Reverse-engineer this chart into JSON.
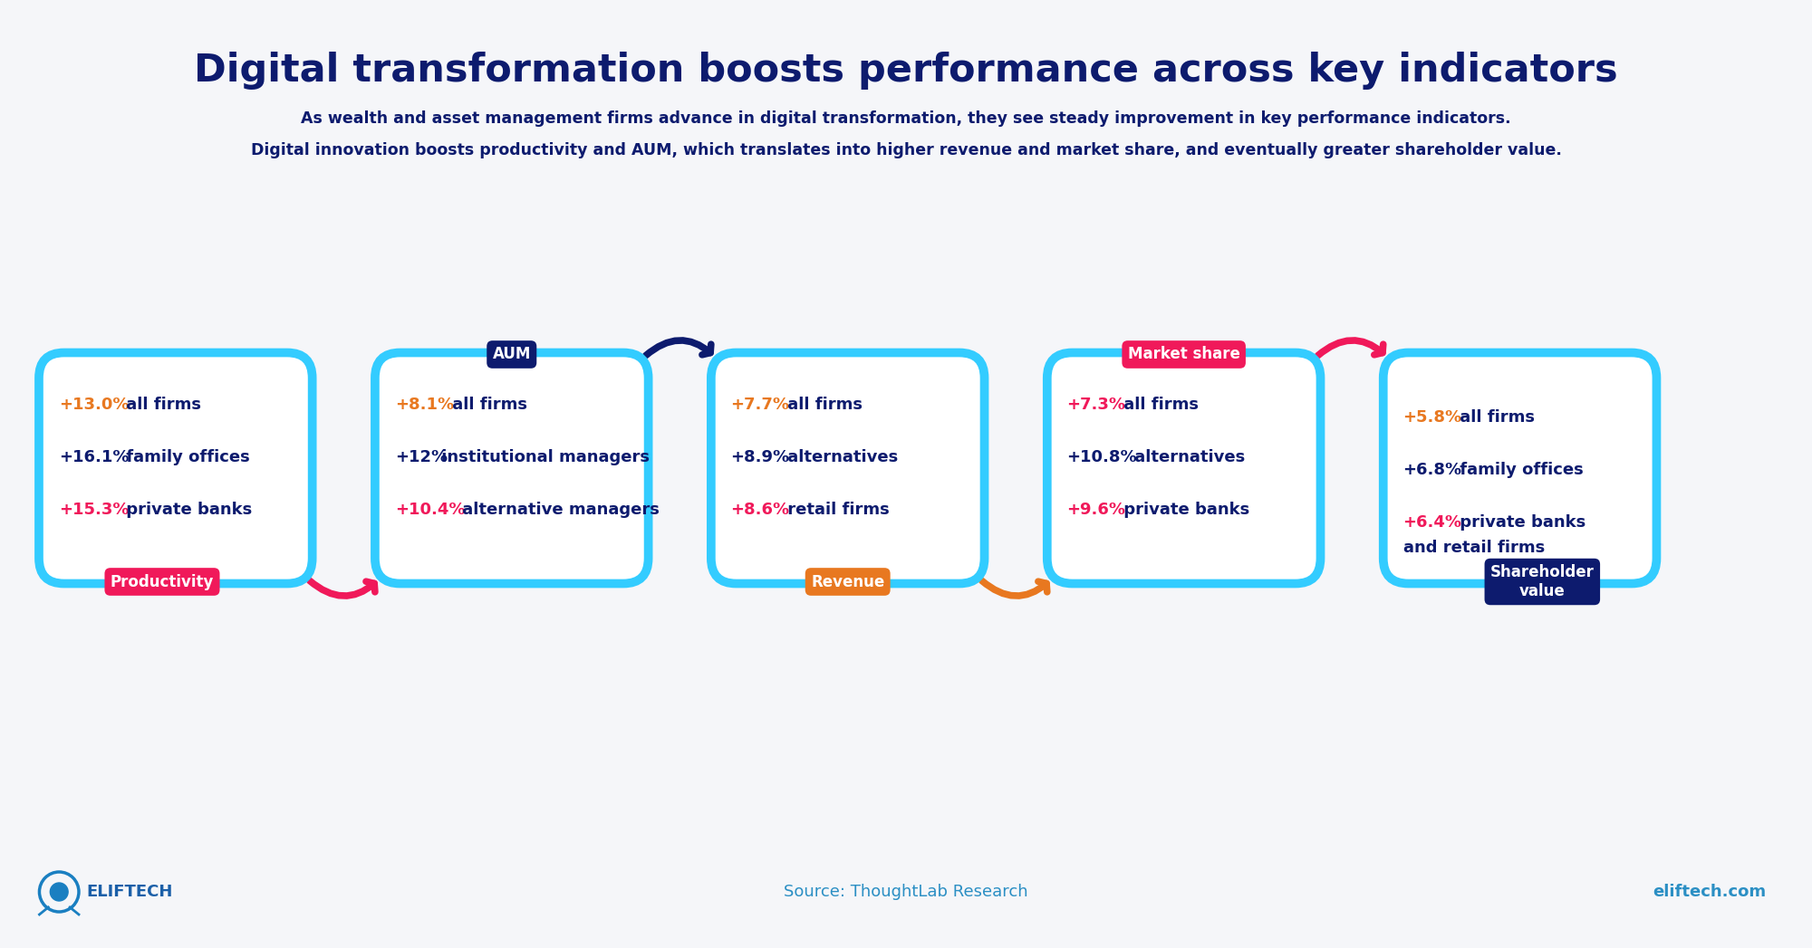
{
  "title": "Digital transformation boosts performance across key indicators",
  "subtitle_line1": "As wealth and asset management firms advance in digital transformation, they see steady improvement in key performance indicators.",
  "subtitle_line2": "Digital innovation boosts productivity and AUM, which translates into higher revenue and market share, and eventually greater shareholder value.",
  "background_color": "#f5f6f9",
  "title_color": "#0d1b6e",
  "subtitle_color": "#0d1b6e",
  "box_border_color": "#33ccff",
  "boxes": [
    {
      "label": "Productivity",
      "label_bg": "#f0195a",
      "label_color": "#ffffff",
      "label_position": "bottom",
      "label_align": "center",
      "lines": [
        {
          "value": "+13.0%",
          "desc": " all firms",
          "value_color": "#e87820",
          "desc_color": "#0d1b6e"
        },
        {
          "value": "+16.1%",
          "desc": " family offices",
          "value_color": "#0d1b6e",
          "desc_color": "#0d1b6e"
        },
        {
          "value": "+15.3%",
          "desc": " private banks",
          "value_color": "#f0195a",
          "desc_color": "#0d1b6e"
        }
      ]
    },
    {
      "label": "AUM",
      "label_bg": "#0d1b6e",
      "label_color": "#ffffff",
      "label_position": "top",
      "label_align": "center",
      "lines": [
        {
          "value": "+8.1%",
          "desc": " all firms",
          "value_color": "#e87820",
          "desc_color": "#0d1b6e"
        },
        {
          "value": "+12%",
          "desc": " institutional managers",
          "value_color": "#0d1b6e",
          "desc_color": "#0d1b6e"
        },
        {
          "value": "+10.4%",
          "desc": " alternative managers",
          "value_color": "#f0195a",
          "desc_color": "#0d1b6e"
        }
      ]
    },
    {
      "label": "Revenue",
      "label_bg": "#e87820",
      "label_color": "#ffffff",
      "label_position": "bottom",
      "label_align": "center",
      "lines": [
        {
          "value": "+7.7%",
          "desc": " all firms",
          "value_color": "#e87820",
          "desc_color": "#0d1b6e"
        },
        {
          "value": "+8.9%",
          "desc": " alternatives",
          "value_color": "#0d1b6e",
          "desc_color": "#0d1b6e"
        },
        {
          "value": "+8.6%",
          "desc": " retail firms",
          "value_color": "#f0195a",
          "desc_color": "#0d1b6e"
        }
      ]
    },
    {
      "label": "Market share",
      "label_bg": "#f0195a",
      "label_color": "#ffffff",
      "label_position": "top",
      "label_align": "center",
      "lines": [
        {
          "value": "+7.3%",
          "desc": " all firms",
          "value_color": "#f0195a",
          "desc_color": "#0d1b6e"
        },
        {
          "value": "+10.8%",
          "desc": " alternatives",
          "value_color": "#0d1b6e",
          "desc_color": "#0d1b6e"
        },
        {
          "value": "+9.6%",
          "desc": " private banks",
          "value_color": "#f0195a",
          "desc_color": "#0d1b6e"
        }
      ]
    },
    {
      "label": "Shareholder\nvalue",
      "label_bg": "#0d1b6e",
      "label_color": "#ffffff",
      "label_position": "bottom",
      "label_align": "center",
      "lines": [
        {
          "value": "+5.8%",
          "desc": " all firms",
          "value_color": "#e87820",
          "desc_color": "#0d1b6e"
        },
        {
          "value": "+6.8%",
          "desc": " family offices",
          "value_color": "#0d1b6e",
          "desc_color": "#0d1b6e"
        },
        {
          "value": "+6.4%",
          "desc": " private banks",
          "desc2": "and retail firms",
          "value_color": "#f0195a",
          "desc_color": "#0d1b6e"
        }
      ]
    }
  ],
  "arrows": [
    {
      "from": 0,
      "to": 1,
      "color": "#f0195a",
      "direction": "bottom"
    },
    {
      "from": 1,
      "to": 2,
      "color": "#0d1b6e",
      "direction": "top"
    },
    {
      "from": 2,
      "to": 3,
      "color": "#e87820",
      "direction": "bottom"
    },
    {
      "from": 3,
      "to": 4,
      "color": "#f0195a",
      "direction": "top"
    }
  ],
  "footer_source": "Source: ThoughtLab Research",
  "footer_brand": "eliftech.com",
  "footer_logo": "ELIFTECH",
  "footer_color": "#2b8fc4"
}
